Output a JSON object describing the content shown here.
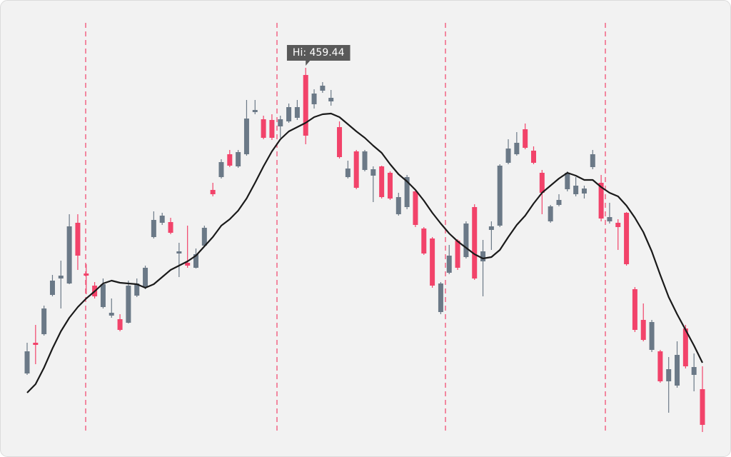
{
  "chart_data": {
    "type": "candlestick",
    "annotation": "Hi: 459.44",
    "up_color": "#6b7987",
    "down_color": "#f2436a",
    "ma_color": "#1a1a1a",
    "open": [
      373.84,
      382.44,
      384.84,
      395.84,
      400.44,
      399.04,
      416.04,
      401.84,
      398.44,
      392.44,
      390.04,
      389.04,
      388.04,
      395.64,
      398.04,
      412.04,
      416.04,
      416.24,
      407.44,
      404.84,
      403.44,
      409.64,
      425.24,
      428.84,
      435.24,
      431.84,
      435.24,
      447.04,
      445.04,
      444.84,
      443.04,
      444.44,
      445.44,
      457.44,
      449.24,
      453.04,
      450.04,
      442.84,
      428.84,
      436.04,
      430.84,
      429.24,
      431.84,
      430.04,
      418.44,
      420.44,
      424.84,
      414.44,
      411.64,
      391.04,
      402.04,
      411.04,
      406.44,
      420.44,
      405.24,
      414.04,
      415.24,
      432.84,
      435.24,
      442.24,
      436.24,
      430.04,
      416.44,
      421.04,
      425.44,
      424.04,
      424.24,
      431.64,
      427.24,
      416.44,
      416.04,
      418.84,
      397.44,
      388.84,
      380.44,
      380.04,
      371.64,
      370.44,
      386.44,
      373.44,
      369.44
    ],
    "high": [
      382.44,
      387.44,
      392.84,
      401.44,
      405.44,
      418.44,
      418.44,
      404.44,
      399.44,
      400.44,
      394.84,
      390.44,
      399.84,
      400.44,
      404.04,
      419.24,
      418.84,
      417.44,
      410.44,
      415.24,
      408.84,
      415.24,
      427.24,
      433.84,
      436.44,
      436.44,
      450.44,
      450.44,
      446.04,
      446.44,
      446.04,
      449.44,
      450.44,
      459.44,
      453.44,
      455.44,
      453.24,
      444.44,
      433.44,
      436.44,
      436.44,
      431.84,
      432.04,
      430.44,
      424.44,
      429.44,
      425.24,
      414.84,
      412.04,
      399.44,
      409.84,
      411.44,
      416.44,
      421.24,
      411.24,
      416.44,
      432.44,
      439.44,
      441.44,
      443.84,
      437.44,
      430.84,
      421.04,
      424.04,
      430.44,
      428.84,
      426.44,
      436.44,
      429.44,
      421.64,
      417.04,
      419.04,
      398.04,
      393.44,
      388.84,
      380.44,
      378.44,
      382.84,
      387.44,
      379.44,
      375.84
    ],
    "low": [
      373.44,
      376.44,
      384.44,
      395.44,
      392.04,
      398.84,
      402.84,
      396.04,
      394.84,
      392.04,
      389.44,
      385.64,
      387.84,
      395.24,
      397.44,
      411.64,
      415.44,
      412.84,
      400.84,
      403.44,
      403.24,
      409.24,
      423.44,
      428.44,
      431.64,
      431.44,
      434.84,
      446.44,
      439.44,
      439.24,
      439.84,
      444.04,
      444.84,
      438.04,
      448.04,
      452.44,
      448.84,
      434.04,
      428.44,
      425.44,
      430.44,
      421.84,
      422.84,
      422.44,
      418.04,
      419.84,
      414.84,
      407.04,
      397.84,
      390.44,
      401.64,
      402.84,
      406.04,
      400.04,
      395.44,
      408.44,
      414.84,
      432.44,
      434.84,
      436.64,
      432.44,
      418.44,
      416.04,
      420.64,
      424.84,
      423.44,
      422.84,
      431.04,
      416.44,
      415.84,
      408.44,
      404.04,
      385.44,
      382.84,
      379.84,
      371.24,
      362.84,
      369.84,
      375.24,
      368.84,
      357.44
    ],
    "close": [
      380.04,
      381.84,
      392.04,
      399.84,
      401.24,
      415.04,
      406.84,
      401.24,
      395.44,
      398.84,
      390.84,
      386.04,
      398.44,
      399.04,
      403.44,
      416.84,
      418.04,
      413.24,
      408.04,
      404.04,
      407.24,
      414.64,
      424.04,
      433.04,
      432.04,
      435.84,
      445.24,
      447.64,
      439.84,
      439.84,
      445.04,
      448.44,
      448.44,
      440.44,
      452.24,
      454.44,
      451.04,
      434.44,
      431.24,
      425.84,
      436.04,
      431.04,
      423.24,
      422.84,
      423.24,
      428.84,
      415.44,
      407.44,
      398.44,
      399.04,
      406.84,
      403.44,
      415.84,
      400.44,
      408.04,
      415.04,
      432.04,
      436.84,
      438.44,
      437.04,
      432.84,
      424.44,
      420.64,
      422.44,
      430.04,
      426.44,
      425.64,
      435.24,
      417.24,
      417.64,
      414.84,
      404.44,
      386.04,
      383.24,
      388.24,
      371.64,
      375.04,
      379.04,
      375.84,
      375.64,
      359.44
    ],
    "ma": [
      368.44,
      370.84,
      375.44,
      380.84,
      385.64,
      389.44,
      392.44,
      394.84,
      396.84,
      399.04,
      399.84,
      399.24,
      399.04,
      398.84,
      397.84,
      398.84,
      400.84,
      402.84,
      404.04,
      405.24,
      406.84,
      409.44,
      412.04,
      415.24,
      417.04,
      419.44,
      422.84,
      427.24,
      431.84,
      436.04,
      439.44,
      441.64,
      442.84,
      444.04,
      445.64,
      446.44,
      446.64,
      445.64,
      443.64,
      441.64,
      439.84,
      437.64,
      435.64,
      432.44,
      429.64,
      427.64,
      425.24,
      422.24,
      418.84,
      415.84,
      413.04,
      410.84,
      409.04,
      407.24,
      406.04,
      406.44,
      408.44,
      412.04,
      415.44,
      418.04,
      421.44,
      424.44,
      426.44,
      428.44,
      430.04,
      429.24,
      428.04,
      428.04,
      426.04,
      424.44,
      423.44,
      420.84,
      417.44,
      413.44,
      408.04,
      401.44,
      395.24,
      390.44,
      386.04,
      381.64,
      376.84
    ]
  }
}
